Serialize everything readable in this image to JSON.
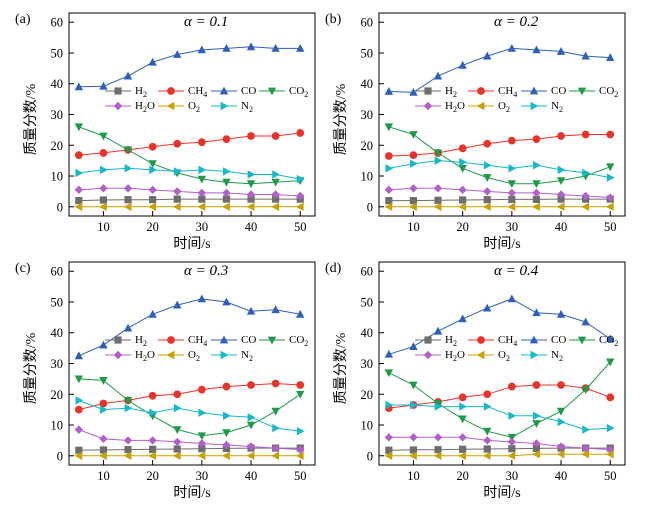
{
  "chart_data": [
    {
      "type": "line",
      "panel_label": "(a)",
      "alpha_label": "α = 0.1",
      "xlabel": "时间/s",
      "ylabel": "质量分数/%",
      "xlim": [
        3,
        53
      ],
      "ylim": [
        -3,
        63
      ],
      "x_ticks": [
        10,
        20,
        30,
        40,
        50
      ],
      "y_ticks": [
        0,
        10,
        20,
        30,
        40,
        50,
        60
      ],
      "x": [
        5,
        10,
        15,
        20,
        25,
        30,
        35,
        40,
        45,
        50
      ],
      "series": [
        {
          "name": "H",
          "sub": "2",
          "color": "#6e6e6e",
          "marker": "square",
          "values": [
            2,
            2.2,
            2.3,
            2.3,
            2.5,
            2.5,
            2.5,
            2.5,
            2.5,
            2.5
          ]
        },
        {
          "name": "CH",
          "sub": "4",
          "color": "#e8342a",
          "marker": "circle",
          "values": [
            16.8,
            17.5,
            18.5,
            19.5,
            20.5,
            21,
            22,
            23,
            23,
            24
          ]
        },
        {
          "name": "CO",
          "sub": "",
          "color": "#2f5fb8",
          "marker": "triangle-up",
          "values": [
            39,
            39.2,
            42.5,
            47,
            49.5,
            51,
            51.5,
            52,
            51.5,
            51.5
          ]
        },
        {
          "name": "CO",
          "sub": "2",
          "color": "#1f9a4a",
          "marker": "triangle-down",
          "values": [
            26,
            23,
            18.5,
            14,
            11,
            9,
            8,
            7.5,
            8,
            8.5
          ]
        },
        {
          "name": "H",
          "sub": "2",
          "suffix": "O",
          "color": "#b060c8",
          "marker": "diamond",
          "values": [
            5.5,
            6,
            6,
            5.5,
            5,
            4.5,
            4.5,
            4,
            4,
            3.5
          ]
        },
        {
          "name": "O",
          "sub": "2",
          "color": "#c9a000",
          "marker": "triangle-left",
          "values": [
            0,
            0,
            0,
            0,
            0,
            0,
            0,
            0,
            0,
            0
          ]
        },
        {
          "name": "N",
          "sub": "2",
          "color": "#18b8c8",
          "marker": "triangle-right",
          "values": [
            11,
            12,
            12.5,
            12,
            11.5,
            12,
            11.5,
            10.5,
            10.5,
            9
          ]
        }
      ]
    },
    {
      "type": "line",
      "panel_label": "(b)",
      "alpha_label": "α = 0.2",
      "xlabel": "时间/s",
      "ylabel": "质量分数/%",
      "xlim": [
        3,
        53
      ],
      "ylim": [
        -3,
        63
      ],
      "x_ticks": [
        10,
        20,
        30,
        40,
        50
      ],
      "y_ticks": [
        0,
        10,
        20,
        30,
        40,
        50,
        60
      ],
      "x": [
        5,
        10,
        15,
        20,
        25,
        30,
        35,
        40,
        45,
        50
      ],
      "series": [
        {
          "name": "H",
          "sub": "2",
          "color": "#6e6e6e",
          "marker": "square",
          "values": [
            2,
            2,
            2.1,
            2.2,
            2.3,
            2.4,
            2.4,
            2.5,
            2.5,
            2.5
          ]
        },
        {
          "name": "CH",
          "sub": "4",
          "color": "#e8342a",
          "marker": "circle",
          "values": [
            16.5,
            16.8,
            17.5,
            19,
            20.5,
            21.5,
            22,
            23,
            23.5,
            23.5
          ]
        },
        {
          "name": "CO",
          "sub": "",
          "color": "#2f5fb8",
          "marker": "triangle-up",
          "values": [
            37.5,
            37.2,
            42.5,
            46,
            49,
            51.5,
            51,
            50.5,
            49,
            48.5
          ]
        },
        {
          "name": "CO",
          "sub": "2",
          "color": "#1f9a4a",
          "marker": "triangle-down",
          "values": [
            26,
            23.5,
            17.5,
            12.5,
            9.5,
            7.5,
            7.5,
            8.5,
            10,
            13
          ]
        },
        {
          "name": "H",
          "sub": "2",
          "suffix": "O",
          "color": "#b060c8",
          "marker": "diamond",
          "values": [
            5.5,
            6,
            6,
            5.5,
            5,
            4.5,
            4.5,
            4,
            3.5,
            3
          ]
        },
        {
          "name": "O",
          "sub": "2",
          "color": "#c9a000",
          "marker": "triangle-left",
          "values": [
            0,
            0,
            0,
            0,
            0,
            0,
            0,
            0,
            0,
            0
          ]
        },
        {
          "name": "N",
          "sub": "2",
          "color": "#18b8c8",
          "marker": "triangle-right",
          "values": [
            12.5,
            14,
            15,
            14.5,
            13.5,
            12.5,
            13.5,
            12,
            11,
            9.5
          ]
        }
      ]
    },
    {
      "type": "line",
      "panel_label": "(c)",
      "alpha_label": "α = 0.3",
      "xlabel": "时间/s",
      "ylabel": "质量分数/%",
      "xlim": [
        3,
        53
      ],
      "ylim": [
        -3,
        63
      ],
      "x_ticks": [
        10,
        20,
        30,
        40,
        50
      ],
      "y_ticks": [
        0,
        10,
        20,
        30,
        40,
        50,
        60
      ],
      "x": [
        5,
        10,
        15,
        20,
        25,
        30,
        35,
        40,
        45,
        50
      ],
      "series": [
        {
          "name": "H",
          "sub": "2",
          "color": "#6e6e6e",
          "marker": "square",
          "values": [
            1.8,
            1.9,
            2,
            2.1,
            2.2,
            2.3,
            2.4,
            2.5,
            2.5,
            2.5
          ]
        },
        {
          "name": "CH",
          "sub": "4",
          "color": "#e8342a",
          "marker": "circle",
          "values": [
            15,
            17,
            18,
            19.5,
            20,
            21.5,
            22.5,
            23,
            23.5,
            23
          ]
        },
        {
          "name": "CO",
          "sub": "",
          "color": "#2f5fb8",
          "marker": "triangle-up",
          "values": [
            32.5,
            36,
            41.5,
            46,
            49,
            51,
            50,
            47,
            47.5,
            46
          ]
        },
        {
          "name": "CO",
          "sub": "2",
          "color": "#1f9a4a",
          "marker": "triangle-down",
          "values": [
            25,
            24.5,
            18,
            13,
            8.5,
            6.5,
            7.5,
            10,
            14.5,
            20
          ]
        },
        {
          "name": "H",
          "sub": "2",
          "suffix": "O",
          "color": "#b060c8",
          "marker": "diamond",
          "values": [
            8.5,
            5.5,
            5,
            5,
            4.5,
            4,
            3.5,
            3,
            2.5,
            2
          ]
        },
        {
          "name": "O",
          "sub": "2",
          "color": "#c9a000",
          "marker": "triangle-left",
          "values": [
            0,
            0,
            0,
            0,
            0,
            0,
            0,
            0,
            0,
            0
          ]
        },
        {
          "name": "N",
          "sub": "2",
          "color": "#18b8c8",
          "marker": "triangle-right",
          "values": [
            18,
            15,
            15.5,
            14,
            15.5,
            14,
            13,
            12.5,
            9,
            8
          ]
        }
      ]
    },
    {
      "type": "line",
      "panel_label": "(d)",
      "alpha_label": "α = 0.4",
      "xlabel": "时间/s",
      "ylabel": "质量分数/%",
      "xlim": [
        3,
        53
      ],
      "ylim": [
        -3,
        63
      ],
      "x_ticks": [
        10,
        20,
        30,
        40,
        50
      ],
      "y_ticks": [
        0,
        10,
        20,
        30,
        40,
        50,
        60
      ],
      "x": [
        5,
        10,
        15,
        20,
        25,
        30,
        35,
        40,
        45,
        50
      ],
      "series": [
        {
          "name": "H",
          "sub": "2",
          "color": "#6e6e6e",
          "marker": "square",
          "values": [
            1.8,
            1.9,
            2,
            2.1,
            2.2,
            2.3,
            2.4,
            2.5,
            2.5,
            2.5
          ]
        },
        {
          "name": "CH",
          "sub": "4",
          "color": "#e8342a",
          "marker": "circle",
          "values": [
            15.5,
            16.5,
            17.5,
            19,
            20,
            22.5,
            23,
            23,
            22,
            19
          ]
        },
        {
          "name": "CO",
          "sub": "",
          "color": "#2f5fb8",
          "marker": "triangle-up",
          "values": [
            33,
            35.5,
            40.5,
            44.5,
            48,
            51,
            46.5,
            46,
            43.5,
            38
          ]
        },
        {
          "name": "CO",
          "sub": "2",
          "color": "#1f9a4a",
          "marker": "triangle-down",
          "values": [
            27,
            23,
            17,
            12,
            8,
            6,
            10.5,
            14.5,
            21.5,
            30.5
          ]
        },
        {
          "name": "H",
          "sub": "2",
          "suffix": "O",
          "color": "#b060c8",
          "marker": "diamond",
          "values": [
            6,
            6,
            6,
            6,
            5,
            4.5,
            4,
            3,
            2.5,
            2
          ]
        },
        {
          "name": "O",
          "sub": "2",
          "color": "#c9a000",
          "marker": "triangle-left",
          "values": [
            0,
            0,
            0,
            0,
            0,
            0,
            0.5,
            0.5,
            0.5,
            0.5
          ]
        },
        {
          "name": "N",
          "sub": "2",
          "color": "#18b8c8",
          "marker": "triangle-right",
          "values": [
            16.5,
            16.5,
            16,
            16,
            16,
            13,
            13,
            11,
            8.5,
            9
          ]
        }
      ]
    }
  ]
}
